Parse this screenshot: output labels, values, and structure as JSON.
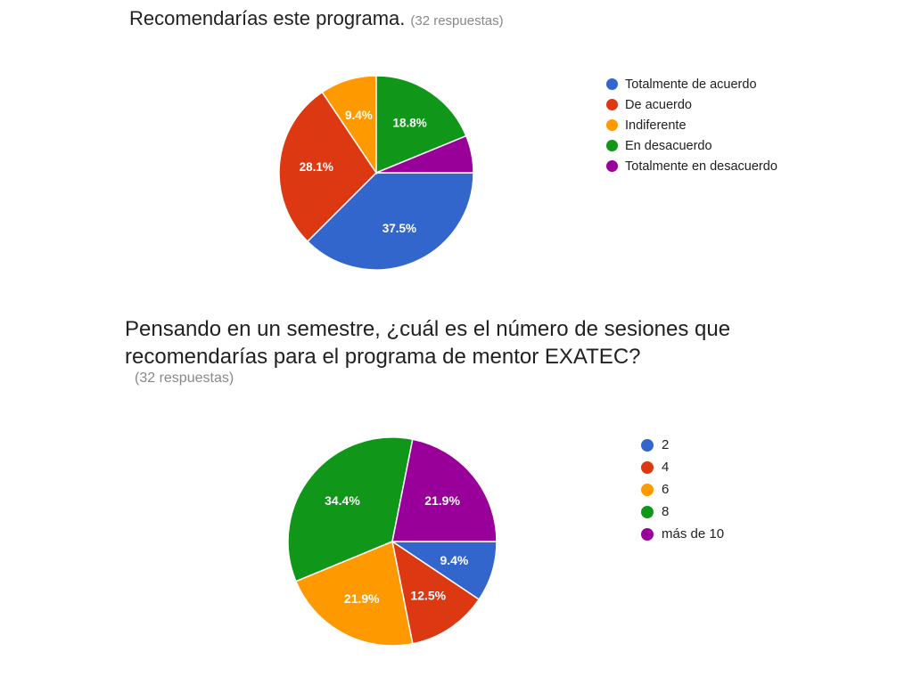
{
  "chart_data": [
    {
      "type": "pie",
      "title": "Recomendarías este programa.",
      "subtitle": "(32 respuestas)",
      "categories": [
        "Totalmente de acuerdo",
        "De acuerdo",
        "Indiferente",
        "En desacuerdo",
        "Totalmente en desacuerdo"
      ],
      "values": [
        37.5,
        28.1,
        9.4,
        18.8,
        6.2
      ],
      "labels": [
        "37.5%",
        "28.1%",
        "9.4%",
        "18.8%",
        ""
      ],
      "colors": [
        "#3366cc",
        "#dc3912",
        "#ff9900",
        "#109618",
        "#990099"
      ],
      "legend_position": "right"
    },
    {
      "type": "pie",
      "title": "Pensando en un semestre, ¿cuál es el número de sesiones que recomendarías para el programa de mentor EXATEC?",
      "subtitle": "(32 respuestas)",
      "categories": [
        "2",
        "4",
        "6",
        "8",
        "más de 10"
      ],
      "values": [
        9.4,
        12.5,
        21.9,
        34.4,
        21.9
      ],
      "labels": [
        "9.4%",
        "12.5%",
        "21.9%",
        "34.4%",
        "21.9%"
      ],
      "colors": [
        "#3366cc",
        "#dc3912",
        "#ff9900",
        "#109618",
        "#990099"
      ],
      "legend_position": "right"
    }
  ]
}
